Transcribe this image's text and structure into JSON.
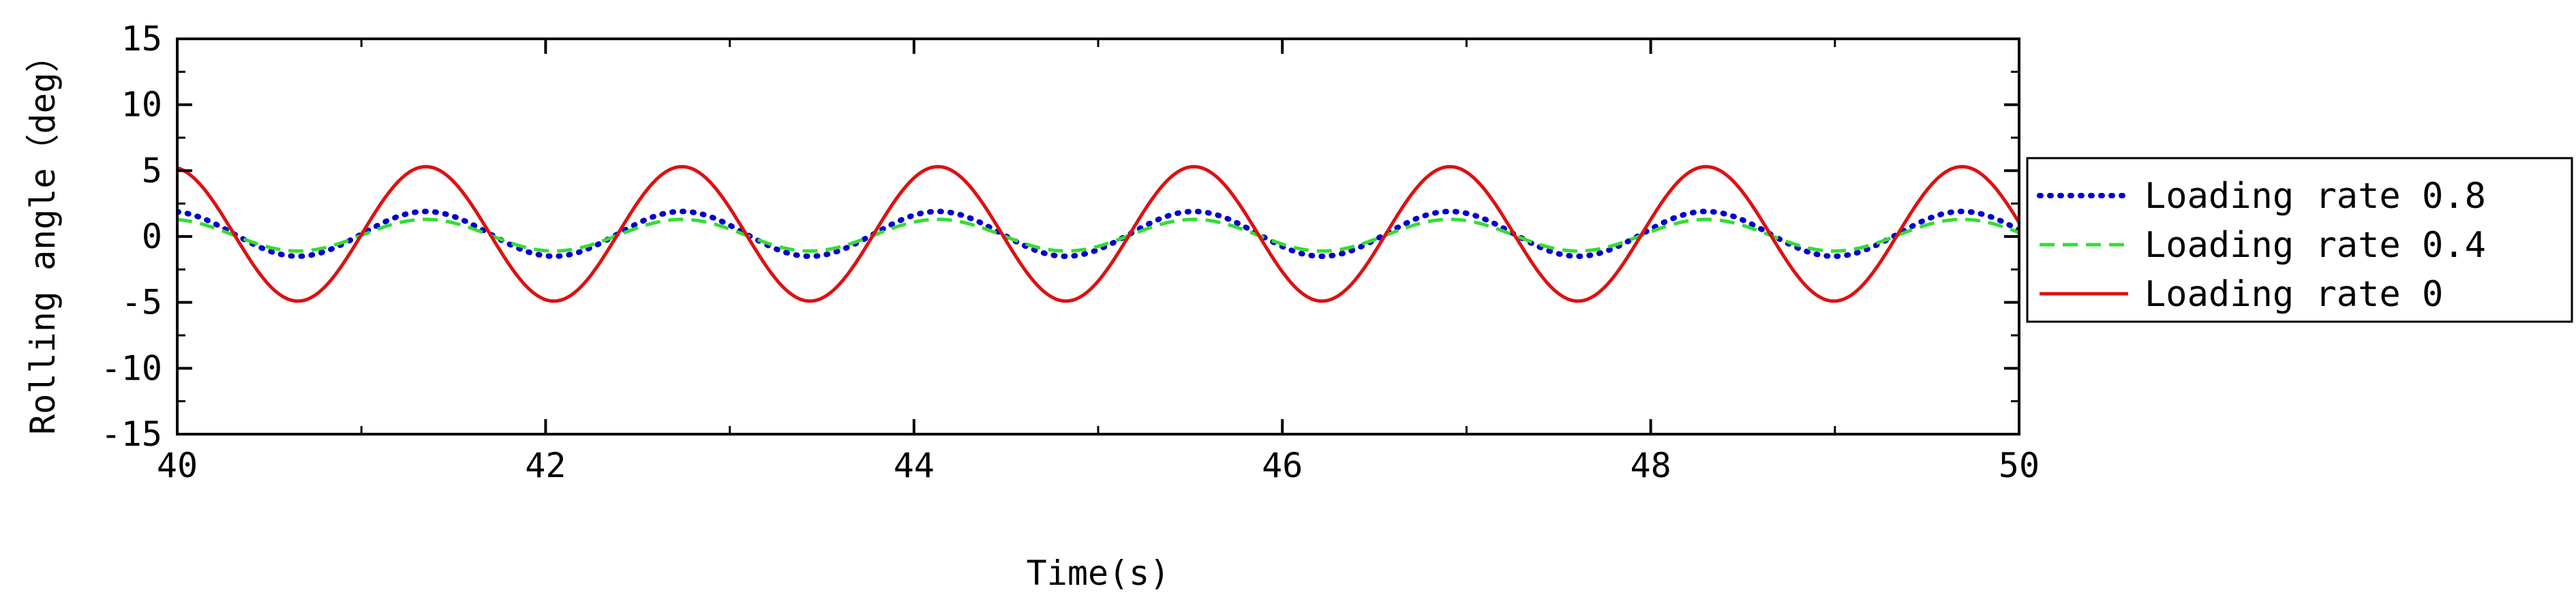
{
  "chart_data": {
    "type": "line",
    "title": "",
    "xlabel": "Time(s)",
    "ylabel": "Rolling angle（deg）",
    "xlim": [
      40,
      50
    ],
    "ylim": [
      -15,
      15
    ],
    "xticks": [
      "40",
      "42",
      "44",
      "46",
      "48",
      "50"
    ],
    "yticks": [
      "-15",
      "-10",
      "-5",
      "0",
      "5",
      "10",
      "15"
    ],
    "grid": false,
    "legend_position": "right",
    "series": [
      {
        "name": "Loading rate 0.8",
        "color": "#0000cc",
        "style": "dotted",
        "amplitude": 1.7,
        "offset": 0.2,
        "period": 1.39,
        "x": [
          40.0,
          40.35,
          40.69,
          41.04,
          41.39,
          41.74,
          42.08,
          42.43,
          42.78,
          43.13,
          43.47,
          43.82,
          44.17,
          44.52,
          44.86,
          45.21,
          45.56,
          45.91,
          46.25,
          46.6,
          46.95,
          47.29,
          47.64,
          47.99,
          48.34,
          48.68,
          49.03,
          49.38,
          49.73,
          50.0
        ],
        "y": [
          2.0,
          0.2,
          -1.5,
          0.2,
          1.9,
          0.2,
          -1.5,
          0.2,
          1.9,
          0.2,
          -1.5,
          0.2,
          1.9,
          0.2,
          -1.5,
          0.2,
          1.9,
          0.2,
          -1.5,
          0.2,
          1.9,
          0.2,
          -1.5,
          0.2,
          1.9,
          0.2,
          -1.5,
          0.2,
          1.9,
          0.5
        ]
      },
      {
        "name": "Loading rate 0.4",
        "color": "#33dd33",
        "style": "dashed",
        "amplitude": 1.2,
        "offset": 0.1,
        "period": 1.39,
        "x": [
          40.0,
          40.35,
          40.69,
          41.04,
          41.39,
          41.74,
          42.08,
          42.43,
          42.78,
          43.13,
          43.47,
          43.82,
          44.17,
          44.52,
          44.86,
          45.21,
          45.56,
          45.91,
          46.25,
          46.6,
          46.95,
          47.29,
          47.64,
          47.99,
          48.34,
          48.68,
          49.03,
          49.38,
          49.73,
          50.0
        ],
        "y": [
          1.3,
          0.1,
          -1.1,
          0.1,
          1.3,
          0.1,
          -1.1,
          0.1,
          1.3,
          0.1,
          -1.1,
          0.1,
          1.3,
          0.1,
          -1.1,
          0.1,
          1.3,
          0.1,
          -1.1,
          0.1,
          1.3,
          0.1,
          -1.1,
          0.1,
          1.3,
          0.1,
          -1.1,
          0.1,
          1.3,
          0.3
        ]
      },
      {
        "name": "Loading rate 0",
        "color": "#dd1111",
        "style": "solid",
        "amplitude": 5.1,
        "offset": 0.2,
        "period": 1.39,
        "x": [
          40.0,
          40.35,
          40.69,
          41.04,
          41.39,
          41.74,
          42.08,
          42.43,
          42.78,
          43.13,
          43.47,
          43.82,
          44.17,
          44.52,
          44.86,
          45.21,
          45.56,
          45.91,
          46.25,
          46.6,
          46.95,
          47.29,
          47.64,
          47.99,
          48.34,
          48.68,
          49.03,
          49.38,
          49.73,
          50.0
        ],
        "y": [
          4.7,
          0.2,
          -4.9,
          0.2,
          5.3,
          0.2,
          -4.9,
          0.2,
          5.3,
          0.2,
          -4.9,
          0.2,
          5.3,
          0.2,
          -4.9,
          0.2,
          5.3,
          0.2,
          -4.9,
          0.2,
          5.3,
          0.2,
          -4.9,
          0.2,
          5.3,
          0.2,
          -4.9,
          0.2,
          5.3,
          0.5
        ]
      }
    ]
  }
}
